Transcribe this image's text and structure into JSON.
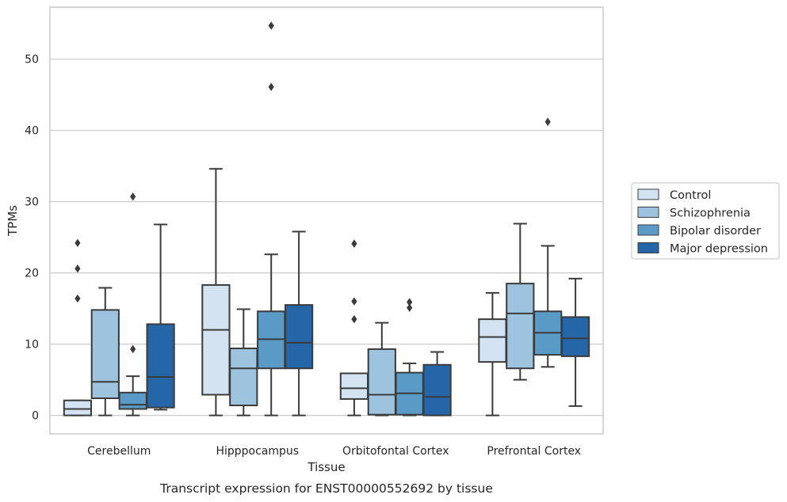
{
  "chart_data": {
    "type": "box",
    "title": "",
    "caption": "Transcript expression for ENST00000552692 by tissue",
    "xlabel": "Tissue",
    "ylabel": "TPMs",
    "ylim": [
      -2.6,
      57.3
    ],
    "yticks": [
      0,
      10,
      20,
      30,
      40,
      50
    ],
    "grid": "horizontal",
    "legend_position": "right",
    "categories": [
      "Cerebellum",
      "Hipppocampus",
      "Orbitofontal Cortex",
      "Prefrontal Cortex"
    ],
    "series": [
      {
        "name": "Control",
        "color": "#d3e3f2",
        "boxes": [
          {
            "whisker_low": 0,
            "q1": 0,
            "median": 0.9,
            "q3": 2.1,
            "whisker_high": 2.1,
            "outliers": [
              16.4,
              20.6,
              24.2
            ]
          },
          {
            "whisker_low": 0,
            "q1": 2.9,
            "median": 12.0,
            "q3": 18.3,
            "whisker_high": 34.6,
            "outliers": []
          },
          {
            "whisker_low": 0,
            "q1": 2.3,
            "median": 3.8,
            "q3": 5.9,
            "whisker_high": 5.9,
            "outliers": [
              13.5,
              16.0,
              24.1
            ]
          },
          {
            "whisker_low": 0,
            "q1": 7.5,
            "median": 11.0,
            "q3": 13.5,
            "whisker_high": 17.2,
            "outliers": []
          }
        ]
      },
      {
        "name": "Schizophrenia",
        "color": "#9dc3de",
        "boxes": [
          {
            "whisker_low": 0,
            "q1": 2.4,
            "median": 4.7,
            "q3": 14.8,
            "whisker_high": 17.9,
            "outliers": []
          },
          {
            "whisker_low": 0,
            "q1": 1.4,
            "median": 6.6,
            "q3": 9.4,
            "whisker_high": 14.9,
            "outliers": []
          },
          {
            "whisker_low": 0,
            "q1": 0.1,
            "median": 2.9,
            "q3": 9.3,
            "whisker_high": 13.0,
            "outliers": []
          },
          {
            "whisker_low": 5.0,
            "q1": 6.6,
            "median": 14.3,
            "q3": 18.5,
            "whisker_high": 26.9,
            "outliers": []
          }
        ]
      },
      {
        "name": "Bipolar disorder",
        "color": "#5a9ac7",
        "boxes": [
          {
            "whisker_low": 0,
            "q1": 0.9,
            "median": 1.5,
            "q3": 3.2,
            "whisker_high": 5.5,
            "outliers": [
              9.3,
              30.7
            ]
          },
          {
            "whisker_low": 0,
            "q1": 6.6,
            "median": 10.7,
            "q3": 14.6,
            "whisker_high": 22.6,
            "outliers": [
              46.1,
              54.7
            ]
          },
          {
            "whisker_low": 0,
            "q1": 0.1,
            "median": 3.1,
            "q3": 6.0,
            "whisker_high": 7.3,
            "outliers": [
              15.1,
              15.9
            ]
          },
          {
            "whisker_low": 6.8,
            "q1": 8.5,
            "median": 11.6,
            "q3": 14.6,
            "whisker_high": 23.8,
            "outliers": [
              41.2
            ]
          }
        ]
      },
      {
        "name": "Major depression",
        "color": "#2566a8",
        "boxes": [
          {
            "whisker_low": 0.8,
            "q1": 1.1,
            "median": 5.4,
            "q3": 12.8,
            "whisker_high": 26.8,
            "outliers": []
          },
          {
            "whisker_low": 0,
            "q1": 6.6,
            "median": 10.2,
            "q3": 15.5,
            "whisker_high": 25.8,
            "outliers": []
          },
          {
            "whisker_low": 0,
            "q1": 0,
            "median": 2.6,
            "q3": 7.1,
            "whisker_high": 8.9,
            "outliers": []
          },
          {
            "whisker_low": 1.3,
            "q1": 8.3,
            "median": 10.8,
            "q3": 13.8,
            "whisker_high": 19.2,
            "outliers": []
          }
        ]
      }
    ]
  },
  "style": {
    "edge_color": "#3b3b3b",
    "grid_color": "#cccccc",
    "frame_color": "#cccccc",
    "background": "#ffffff"
  }
}
